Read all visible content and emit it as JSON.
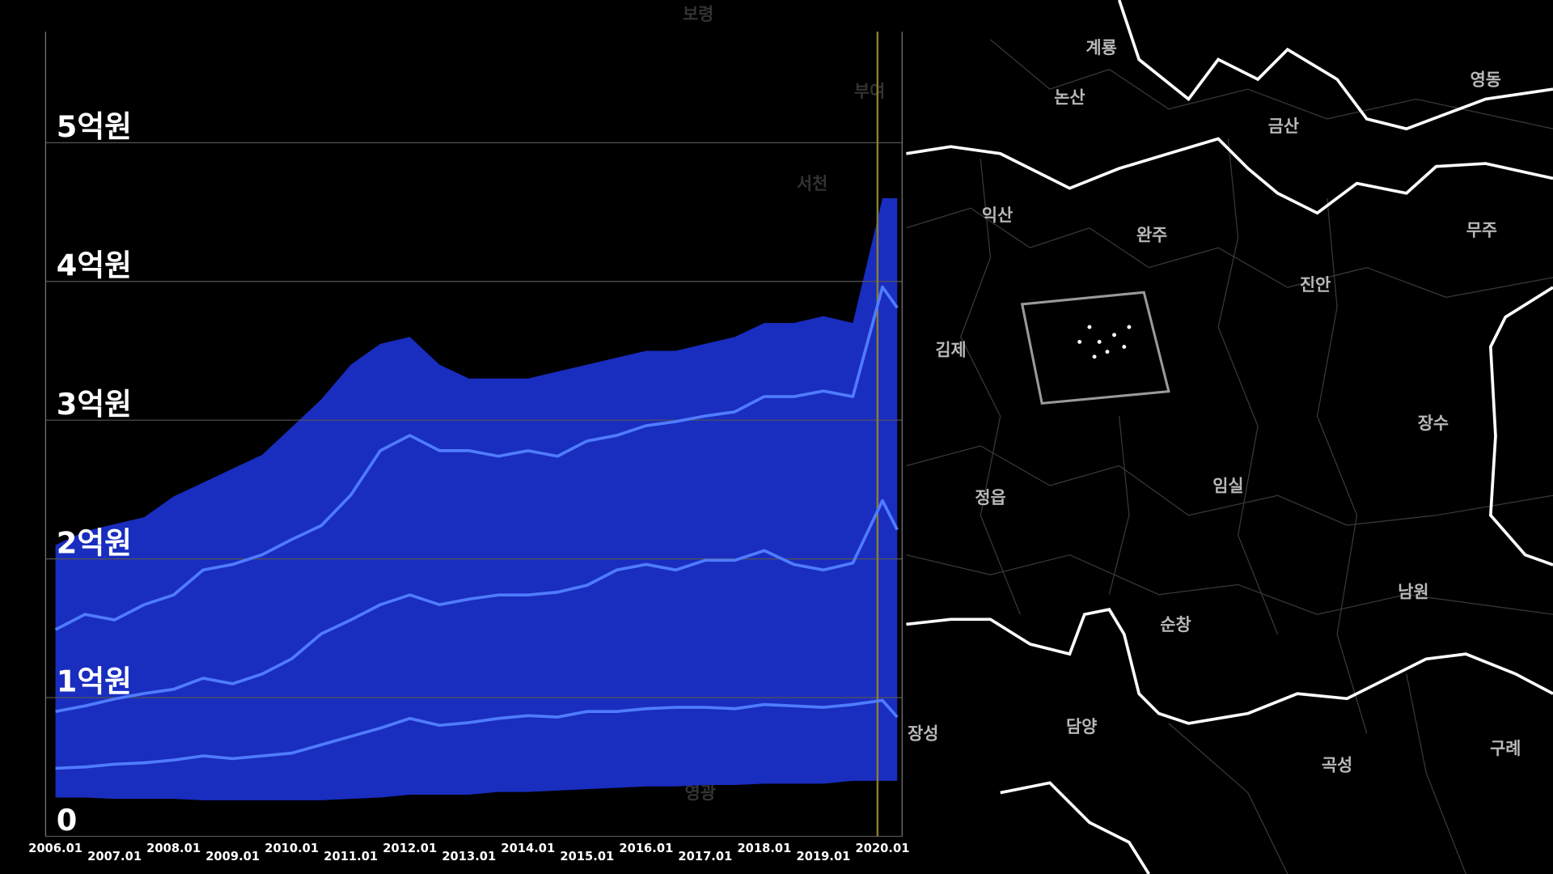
{
  "chart_data": {
    "type": "line",
    "x": [
      "2006.01",
      "2006.07",
      "2007.01",
      "2007.07",
      "2008.01",
      "2008.07",
      "2009.01",
      "2009.07",
      "2010.01",
      "2010.07",
      "2011.01",
      "2011.07",
      "2012.01",
      "2012.07",
      "2013.01",
      "2013.07",
      "2014.01",
      "2014.07",
      "2015.01",
      "2015.07",
      "2016.01",
      "2016.07",
      "2017.01",
      "2017.07",
      "2018.01",
      "2018.07",
      "2019.01",
      "2019.07",
      "2020.01",
      "2020.04"
    ],
    "series": [
      {
        "color": "#4f7cff",
        "values": [
          1.49,
          1.6,
          1.56,
          1.67,
          1.74,
          1.92,
          1.96,
          2.03,
          2.14,
          2.24,
          2.46,
          2.78,
          2.89,
          2.78,
          2.78,
          2.74,
          2.78,
          2.74,
          2.85,
          2.89,
          2.96,
          2.99,
          3.03,
          3.06,
          3.17,
          3.17,
          3.21,
          3.17,
          3.96,
          3.81
        ]
      },
      {
        "color": "#4f7cff",
        "values": [
          0.9,
          0.94,
          0.99,
          1.03,
          1.06,
          1.14,
          1.1,
          1.17,
          1.28,
          1.46,
          1.56,
          1.67,
          1.74,
          1.67,
          1.71,
          1.74,
          1.74,
          1.76,
          1.81,
          1.92,
          1.96,
          1.92,
          1.99,
          1.99,
          2.06,
          1.96,
          1.92,
          1.97,
          2.42,
          2.21
        ]
      },
      {
        "color": "#4f7cff",
        "values": [
          0.49,
          0.5,
          0.52,
          0.53,
          0.55,
          0.58,
          0.56,
          0.58,
          0.6,
          0.66,
          0.72,
          0.78,
          0.85,
          0.8,
          0.82,
          0.85,
          0.87,
          0.86,
          0.9,
          0.9,
          0.92,
          0.93,
          0.93,
          0.92,
          0.95,
          0.94,
          0.93,
          0.95,
          0.98,
          0.86
        ]
      }
    ],
    "range": {
      "color": "#1d35e0",
      "low": [
        0.28,
        0.28,
        0.27,
        0.27,
        0.27,
        0.26,
        0.26,
        0.26,
        0.26,
        0.26,
        0.27,
        0.28,
        0.3,
        0.3,
        0.3,
        0.32,
        0.32,
        0.33,
        0.34,
        0.35,
        0.36,
        0.36,
        0.37,
        0.37,
        0.38,
        0.38,
        0.38,
        0.4,
        0.4,
        0.4
      ],
      "high": [
        2.1,
        2.2,
        2.25,
        2.3,
        2.45,
        2.55,
        2.65,
        2.75,
        2.95,
        3.15,
        3.4,
        3.55,
        3.6,
        3.4,
        3.3,
        3.3,
        3.3,
        3.35,
        3.4,
        3.45,
        3.5,
        3.5,
        3.55,
        3.6,
        3.7,
        3.7,
        3.75,
        3.7,
        4.6,
        4.6
      ]
    },
    "xlim": [
      "2005.11",
      "2020.05"
    ],
    "xticks": [
      "2006.01",
      "2007.01",
      "2008.01",
      "2009.01",
      "2010.01",
      "2011.01",
      "2012.01",
      "2013.01",
      "2014.01",
      "2015.01",
      "2016.01",
      "2017.01",
      "2018.01",
      "2019.01",
      "2020.01"
    ],
    "ylim": [
      0,
      5.8
    ],
    "yticks": [
      0,
      {
        "value": 1,
        "label": "1억원"
      },
      {
        "value": 2,
        "label": "2억원"
      },
      {
        "value": 3,
        "label": "3억원"
      },
      {
        "value": 4,
        "label": "4억원"
      },
      {
        "value": 5,
        "label": "5억원"
      }
    ],
    "grid": true,
    "vline": {
      "x": "2019.12",
      "color": "#8a7d2e"
    }
  },
  "map": {
    "labels": [
      "보령",
      "계룡",
      "논산",
      "금산",
      "영동",
      "익산",
      "완주",
      "무주",
      "진안",
      "김제",
      "장수",
      "정읍",
      "임실",
      "남원",
      "순창",
      "담양",
      "곡성",
      "구례",
      "장성",
      "서천",
      "부여",
      "영광"
    ]
  }
}
